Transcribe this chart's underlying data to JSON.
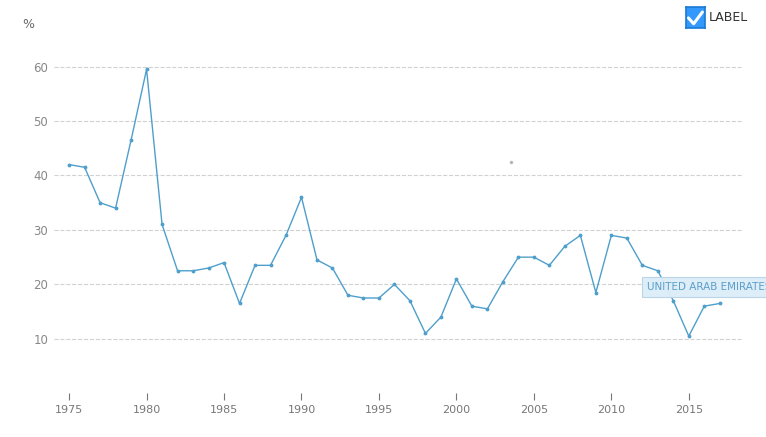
{
  "years": [
    1975,
    1976,
    1977,
    1978,
    1979,
    1980,
    1981,
    1982,
    1983,
    1984,
    1985,
    1986,
    1987,
    1988,
    1989,
    1990,
    1991,
    1992,
    1993,
    1994,
    1995,
    1996,
    1997,
    1998,
    1999,
    2000,
    2001,
    2002,
    2003,
    2004,
    2005,
    2006,
    2007,
    2008,
    2009,
    2010,
    2011,
    2012,
    2013,
    2014,
    2015,
    2016,
    2017
  ],
  "values": [
    42.0,
    41.5,
    35.0,
    34.0,
    46.5,
    59.5,
    31.0,
    22.5,
    22.5,
    23.0,
    24.0,
    16.5,
    23.5,
    23.5,
    29.0,
    36.0,
    24.5,
    23.0,
    18.0,
    17.5,
    17.5,
    20.0,
    17.0,
    11.0,
    14.0,
    21.0,
    16.0,
    15.5,
    20.5,
    25.0,
    25.0,
    23.5,
    27.0,
    29.0,
    18.5,
    29.0,
    28.5,
    23.5,
    22.5,
    17.0,
    10.5,
    16.0,
    16.5
  ],
  "line_color": "#4e9fcb",
  "marker_size": 3.5,
  "background_color": "#ffffff",
  "grid_color": "#cccccc",
  "ylim_max": 65,
  "yticks": [
    10,
    20,
    30,
    40,
    50,
    60
  ],
  "xlim": [
    1974.0,
    2018.5
  ],
  "xticks": [
    1975,
    1980,
    1985,
    1990,
    1995,
    2000,
    2005,
    2010,
    2015
  ],
  "ylabel": "%",
  "checkbox_color": "#3399ff",
  "legend_text_label": "LABEL",
  "tooltip_text": "UNITED ARAB EMIRATES",
  "tooltip_x": 2012.3,
  "tooltip_y": 19.5,
  "anomaly_dot_x": 2003.5,
  "anomaly_dot_y": 42.5
}
